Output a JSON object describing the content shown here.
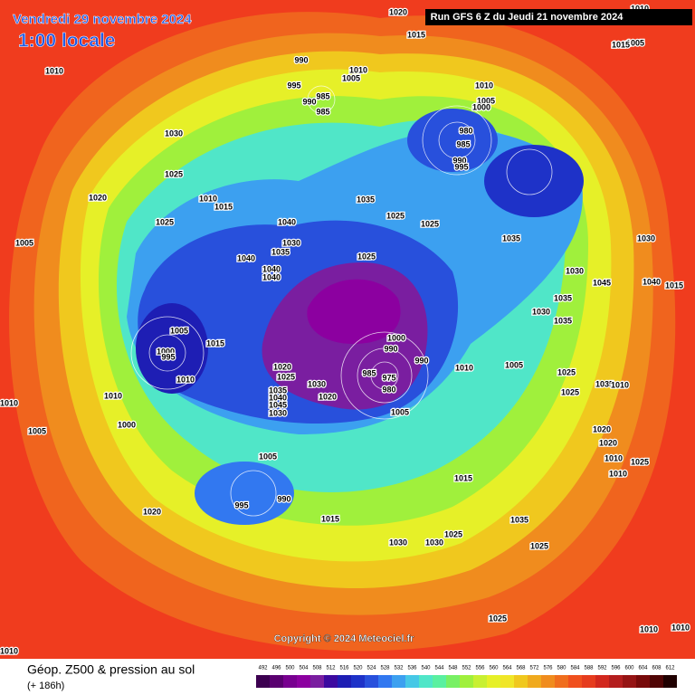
{
  "header": {
    "date": "Vendredi 29 novembre 2024",
    "time": "1:00 locale",
    "run": "Run GFS 6 Z du Jeudi 21 novembre 2024"
  },
  "copyright": "Copyright © 2024 Meteociel.fr",
  "legend": {
    "title": "Géop. Z500 & pression au sol",
    "lead": "(+ 186h)",
    "ticks": [
      492,
      496,
      500,
      504,
      508,
      512,
      516,
      520,
      524,
      528,
      532,
      536,
      540,
      544,
      548,
      552,
      556,
      560,
      564,
      568,
      572,
      576,
      580,
      584,
      588,
      592,
      596,
      600,
      604,
      608,
      612
    ],
    "colors": [
      "#3c0050",
      "#5a0070",
      "#780090",
      "#8c00a0",
      "#7a1ea0",
      "#3c0aa0",
      "#1e1eb4",
      "#1e32c8",
      "#2850dc",
      "#3278f0",
      "#3ca0f0",
      "#46c8e6",
      "#50e6c8",
      "#5af0a0",
      "#78f064",
      "#a0f03c",
      "#c8f032",
      "#e6f028",
      "#f0e628",
      "#f0c81e",
      "#f0aa1e",
      "#f08c1e",
      "#f06e1e",
      "#f0501e",
      "#e63c1e",
      "#d2281e",
      "#b41e1e",
      "#961414",
      "#780a0a",
      "#500505",
      "#200000"
    ]
  },
  "isobars": [
    "1020",
    "1015",
    "1010",
    "1005",
    "990",
    "995",
    "1010",
    "1005",
    "990",
    "985",
    "985",
    "1010",
    "1005",
    "1000",
    "980",
    "985",
    "990",
    "995",
    "1010",
    "1030",
    "1025",
    "1020",
    "1010",
    "1015",
    "1025",
    "1005",
    "1040",
    "1035",
    "1030",
    "1040",
    "1040",
    "1040",
    "1035",
    "1025",
    "1025",
    "1025",
    "1035",
    "1030",
    "1010",
    "1015",
    "1030",
    "1035",
    "1030",
    "1035",
    "1045",
    "1040",
    "1015",
    "1005",
    "1000",
    "995",
    "1015",
    "1010",
    "1010",
    "1020",
    "1025",
    "1030",
    "1020",
    "1035",
    "1040",
    "1045",
    "1030",
    "1000",
    "990",
    "985",
    "975",
    "980",
    "990",
    "1005",
    "1010",
    "1005",
    "1025",
    "1025",
    "1035",
    "1010",
    "1010",
    "1000",
    "1005",
    "995",
    "990",
    "1005",
    "1020",
    "1015",
    "1015",
    "1020",
    "1010",
    "1010",
    "1020",
    "1025",
    "1030",
    "1030",
    "1035",
    "1025",
    "1025",
    "1025",
    "1010",
    "1010",
    "1010"
  ]
}
